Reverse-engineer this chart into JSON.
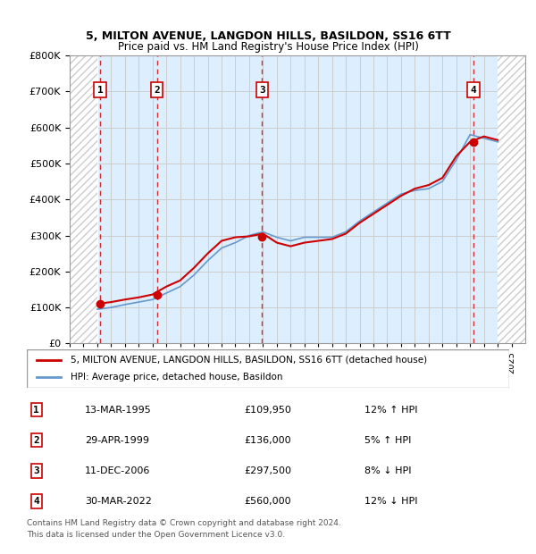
{
  "title1": "5, MILTON AVENUE, LANGDON HILLS, BASILDON, SS16 6TT",
  "title2": "Price paid vs. HM Land Registry's House Price Index (HPI)",
  "sale_dates": [
    "1995-03-13",
    "1999-04-29",
    "2006-12-11",
    "2022-03-30"
  ],
  "sale_prices": [
    109950,
    136000,
    297500,
    560000
  ],
  "sale_labels": [
    "1",
    "2",
    "3",
    "4"
  ],
  "sale_notes": [
    "13-MAR-1995",
    "29-APR-1999",
    "11-DEC-2006",
    "30-MAR-2022"
  ],
  "sale_price_strs": [
    "£109,950",
    "£136,000",
    "£297,500",
    "£560,000"
  ],
  "sale_pct_strs": [
    "12% ↑ HPI",
    "5% ↑ HPI",
    "8% ↓ HPI",
    "12% ↓ HPI"
  ],
  "legend_label_red": "5, MILTON AVENUE, LANGDON HILLS, BASILDON, SS16 6TT (detached house)",
  "legend_label_blue": "HPI: Average price, detached house, Basildon",
  "footnote1": "Contains HM Land Registry data © Crown copyright and database right 2024.",
  "footnote2": "This data is licensed under the Open Government Licence v3.0.",
  "red_color": "#cc0000",
  "blue_color": "#6699cc",
  "hatch_color": "#cccccc",
  "grid_color": "#cccccc",
  "bg_color": "#ddeeff",
  "ylim": [
    0,
    800000
  ],
  "yticks": [
    0,
    100000,
    200000,
    300000,
    400000,
    500000,
    600000,
    700000,
    800000
  ],
  "ytick_labels": [
    "£0",
    "£100K",
    "£200K",
    "£300K",
    "£400K",
    "£500K",
    "£600K",
    "£700K",
    "£800K"
  ],
  "xstart": 1993,
  "xend": 2026,
  "data_xstart": 1995,
  "data_xend": 2024,
  "hpi_years": [
    1995,
    1996,
    1997,
    1998,
    1999,
    2000,
    2001,
    2002,
    2003,
    2004,
    2005,
    2006,
    2007,
    2008,
    2009,
    2010,
    2011,
    2012,
    2013,
    2014,
    2015,
    2016,
    2017,
    2018,
    2019,
    2020,
    2021,
    2022,
    2023,
    2024
  ],
  "hpi_values": [
    95000,
    100000,
    108000,
    115000,
    122000,
    140000,
    158000,
    190000,
    230000,
    265000,
    280000,
    300000,
    310000,
    295000,
    285000,
    295000,
    295000,
    295000,
    310000,
    340000,
    365000,
    390000,
    415000,
    425000,
    430000,
    450000,
    510000,
    580000,
    570000,
    560000
  ],
  "red_years": [
    1995,
    1996,
    1997,
    1998,
    1999,
    2000,
    2001,
    2002,
    2003,
    2004,
    2005,
    2006,
    2007,
    2008,
    2009,
    2010,
    2011,
    2012,
    2013,
    2014,
    2015,
    2016,
    2017,
    2018,
    2019,
    2020,
    2021,
    2022,
    2023,
    2024
  ],
  "red_values": [
    109950,
    115000,
    122000,
    128000,
    136000,
    158000,
    175000,
    210000,
    250000,
    285000,
    295000,
    297500,
    305000,
    280000,
    270000,
    280000,
    285000,
    290000,
    305000,
    335000,
    360000,
    385000,
    410000,
    430000,
    440000,
    460000,
    520000,
    560000,
    575000,
    565000
  ],
  "box_label_color": "#cc0000",
  "box_fill": "#ffffff"
}
